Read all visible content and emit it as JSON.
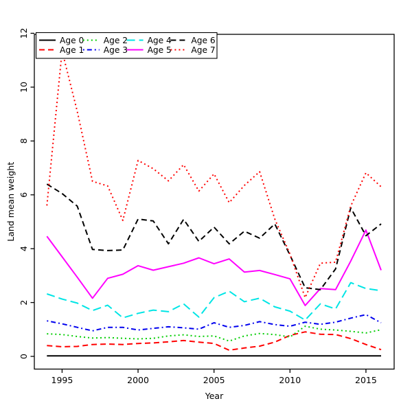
{
  "figure": {
    "background": "#ffffff",
    "axis_color": "#000000"
  },
  "chart_data": {
    "type": "line",
    "title": "",
    "xlabel": "Year",
    "ylabel": "Land mean weight",
    "x": [
      1994,
      1995,
      1996,
      1997,
      1998,
      1999,
      2000,
      2001,
      2002,
      2003,
      2004,
      2005,
      2006,
      2007,
      2008,
      2009,
      2010,
      2011,
      2012,
      2013,
      2014,
      2015,
      2016
    ],
    "x_ticks": [
      1995,
      2000,
      2005,
      2010,
      2015
    ],
    "y_ticks": [
      0,
      2,
      4,
      6,
      8,
      10,
      12
    ],
    "xlim": [
      1993.1,
      2016.9
    ],
    "ylim": [
      -0.47,
      11.96
    ],
    "grid": false,
    "legend_position": "top-left",
    "legend_columns": 4,
    "series": [
      {
        "name": "Age 0",
        "color": "#000000",
        "linestyle": "solid",
        "values": [
          0.02,
          0.02,
          0.02,
          0.02,
          0.02,
          0.02,
          0.02,
          0.02,
          0.02,
          0.02,
          0.02,
          0.02,
          0.02,
          0.02,
          0.02,
          0.02,
          0.02,
          0.02,
          0.02,
          0.02,
          0.02,
          0.02,
          0.02
        ]
      },
      {
        "name": "Age 1",
        "color": "#ff0000",
        "linestyle": "dashed",
        "values": [
          0.4,
          0.36,
          0.37,
          0.44,
          0.46,
          0.44,
          0.48,
          0.5,
          0.54,
          0.59,
          0.53,
          0.48,
          0.23,
          0.31,
          0.38,
          0.53,
          0.78,
          0.91,
          0.82,
          0.81,
          0.66,
          0.44,
          0.25
        ]
      },
      {
        "name": "Age 2",
        "color": "#00cd00",
        "linestyle": "dotted",
        "values": [
          0.84,
          0.81,
          0.74,
          0.68,
          0.7,
          0.67,
          0.65,
          0.67,
          0.76,
          0.8,
          0.74,
          0.76,
          0.57,
          0.76,
          0.85,
          0.81,
          0.72,
          1.12,
          1.01,
          0.98,
          0.93,
          0.87,
          0.99
        ]
      },
      {
        "name": "Age 3",
        "color": "#0000ee",
        "linestyle": "dashdot",
        "values": [
          1.32,
          1.21,
          1.08,
          0.95,
          1.08,
          1.08,
          0.98,
          1.04,
          1.1,
          1.06,
          1.01,
          1.25,
          1.08,
          1.15,
          1.29,
          1.18,
          1.12,
          1.27,
          1.19,
          1.27,
          1.42,
          1.55,
          1.25
        ]
      },
      {
        "name": "Age 4",
        "color": "#00e5e5",
        "linestyle": "longdash",
        "values": [
          2.32,
          2.13,
          1.98,
          1.7,
          1.9,
          1.43,
          1.6,
          1.72,
          1.66,
          1.95,
          1.46,
          2.18,
          2.42,
          2.03,
          2.16,
          1.84,
          1.68,
          1.35,
          1.95,
          1.76,
          2.74,
          2.52,
          2.44
        ]
      },
      {
        "name": "Age 5",
        "color": "#ff00ff",
        "linestyle": "solid",
        "values": [
          4.46,
          3.7,
          2.94,
          2.16,
          2.9,
          3.05,
          3.37,
          3.2,
          3.33,
          3.46,
          3.66,
          3.44,
          3.62,
          3.13,
          3.19,
          3.04,
          2.88,
          1.89,
          2.52,
          2.48,
          3.54,
          4.69,
          3.2
        ]
      },
      {
        "name": "Age 6",
        "color": "#000000",
        "linestyle": "dashed",
        "values": [
          6.4,
          6.05,
          5.58,
          3.97,
          3.93,
          3.95,
          5.1,
          5.03,
          4.18,
          5.09,
          4.27,
          4.8,
          4.18,
          4.65,
          4.39,
          4.92,
          3.76,
          2.55,
          2.48,
          3.25,
          5.52,
          4.48,
          4.92
        ]
      },
      {
        "name": "Age 7",
        "color": "#ff0000",
        "linestyle": "dotted",
        "values": [
          5.6,
          11.35,
          9.1,
          6.5,
          6.33,
          5.05,
          7.28,
          6.97,
          6.52,
          7.12,
          6.14,
          6.78,
          5.71,
          6.35,
          6.86,
          5.1,
          3.8,
          2.18,
          3.46,
          3.5,
          5.58,
          6.82,
          6.3
        ]
      }
    ]
  }
}
